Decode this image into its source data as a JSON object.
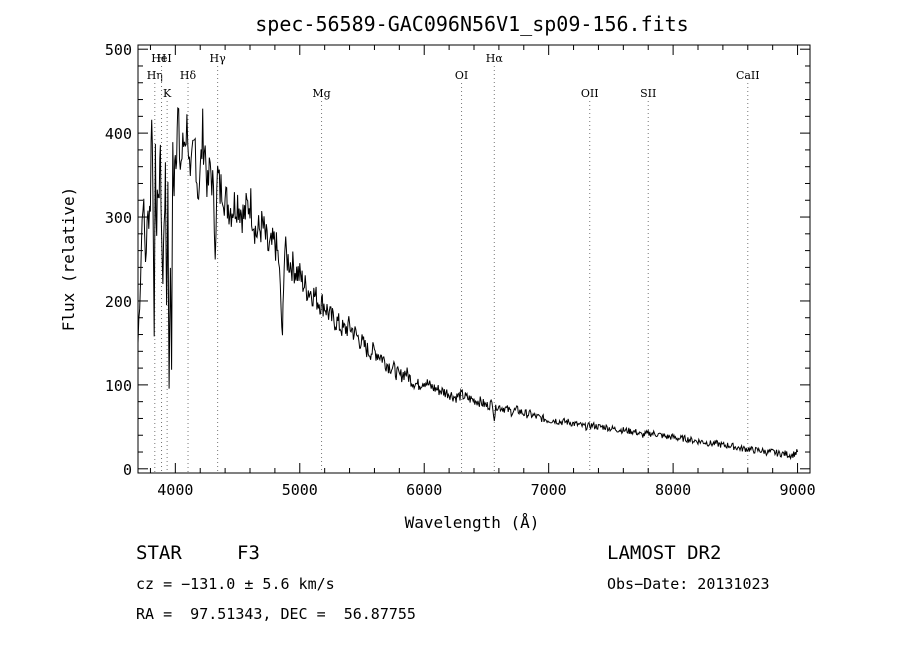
{
  "chart_data": {
    "type": "line",
    "title": "spec-56589-GAC096N56V1_sp09-156.fits",
    "xlabel": "Wavelength (Å)",
    "ylabel": "Flux (relative)",
    "xlim": [
      3700,
      9100
    ],
    "ylim": [
      -5,
      505
    ],
    "xticks": [
      4000,
      5000,
      6000,
      7000,
      8000,
      9000
    ],
    "yticks": [
      0,
      100,
      200,
      300,
      400,
      500
    ],
    "grid": false,
    "series": [
      {
        "x": [
          3700,
          3720,
          3740,
          3760,
          3780,
          3800,
          3810,
          3820,
          3830,
          3840,
          3850,
          3860,
          3870,
          3880,
          3890,
          3900,
          3910,
          3920,
          3930,
          3940,
          3950,
          3960,
          3970,
          3980,
          3990,
          4000,
          4010,
          4020,
          4040,
          4060,
          4080,
          4100,
          4120,
          4140,
          4160,
          4180,
          4200,
          4220,
          4240,
          4260,
          4280,
          4300,
          4320,
          4340,
          4360,
          4380,
          4400,
          4450,
          4500,
          4550,
          4600,
          4650,
          4700,
          4750,
          4800,
          4830,
          4850,
          4861,
          4870,
          4880,
          4900,
          4950,
          5000,
          5050,
          5100,
          5150,
          5200,
          5250,
          5300,
          5350,
          5400,
          5450,
          5500,
          5550,
          5600,
          5650,
          5700,
          5750,
          5800,
          5850,
          5900,
          5950,
          6000,
          6050,
          6100,
          6150,
          6200,
          6250,
          6300,
          6350,
          6400,
          6450,
          6500,
          6550,
          6563,
          6580,
          6600,
          6650,
          6700,
          6750,
          6800,
          6850,
          6900,
          6950,
          7000,
          7050,
          7100,
          7150,
          7200,
          7250,
          7300,
          7350,
          7400,
          7450,
          7500,
          7550,
          7600,
          7650,
          7700,
          7750,
          7800,
          7850,
          7900,
          7950,
          8000,
          8050,
          8100,
          8150,
          8200,
          8250,
          8300,
          8350,
          8400,
          8450,
          8500,
          8550,
          8600,
          8650,
          8700,
          8750,
          8800,
          8850,
          8900,
          8950,
          9000
        ],
        "y": [
          150,
          230,
          330,
          250,
          300,
          320,
          440,
          330,
          170,
          360,
          280,
          340,
          320,
          400,
          260,
          230,
          300,
          350,
          200,
          320,
          90,
          250,
          120,
          380,
          340,
          400,
          370,
          420,
          360,
          380,
          400,
          410,
          330,
          370,
          390,
          330,
          350,
          400,
          380,
          330,
          360,
          340,
          270,
          350,
          330,
          340,
          320,
          310,
          320,
          300,
          320,
          280,
          290,
          260,
          270,
          250,
          190,
          150,
          230,
          260,
          250,
          240,
          230,
          215,
          210,
          200,
          195,
          180,
          175,
          165,
          170,
          160,
          150,
          140,
          140,
          135,
          125,
          120,
          110,
          115,
          105,
          100,
          105,
          98,
          95,
          92,
          90,
          85,
          88,
          84,
          82,
          80,
          75,
          78,
          60,
          76,
          74,
          72,
          68,
          70,
          66,
          65,
          62,
          60,
          58,
          58,
          56,
          56,
          54,
          52,
          50,
          52,
          50,
          50,
          48,
          47,
          46,
          45,
          44,
          40,
          42,
          42,
          40,
          38,
          38,
          36,
          36,
          34,
          33,
          32,
          30,
          30,
          28,
          28,
          26,
          24,
          24,
          22,
          22,
          20,
          20,
          18,
          18,
          16,
          20
        ]
      }
    ],
    "line_labels": [
      {
        "name": "Hη",
        "x": 3835,
        "row": 3
      },
      {
        "name": "HeI",
        "x": 3889,
        "row": 1
      },
      {
        "name": "K",
        "x": 3934,
        "row": 4
      },
      {
        "name": "H",
        "x": 3889,
        "row": 1
      },
      {
        "name": "Hδ",
        "x": 4102,
        "row": 3
      },
      {
        "name": "Hγ",
        "x": 4340,
        "row": 2
      },
      {
        "name": "Mg",
        "x": 5175,
        "row": 4
      },
      {
        "name": "OI",
        "x": 6300,
        "row": 3
      },
      {
        "name": "Hα",
        "x": 6563,
        "row": 2
      },
      {
        "name": "OII",
        "x": 7330,
        "row": 4
      },
      {
        "name": "SII",
        "x": 7800,
        "row": 4
      },
      {
        "name": "CaII",
        "x": 8600,
        "row": 3
      }
    ]
  },
  "info": {
    "object_class": "STAR",
    "subclass": "F3",
    "survey": "LAMOST DR2",
    "redshift_line": "cz = −131.0 ± 5.6 km/s",
    "obs_date": "Obs−Date: 20131023",
    "coords_line": "RA =  97.51343, DEC =  56.87755"
  }
}
